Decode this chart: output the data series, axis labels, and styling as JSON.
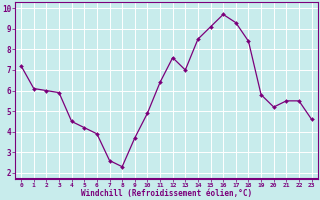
{
  "x": [
    0,
    1,
    2,
    3,
    4,
    5,
    6,
    7,
    8,
    9,
    10,
    11,
    12,
    13,
    14,
    15,
    16,
    17,
    18,
    19,
    20,
    21,
    22,
    23
  ],
  "y": [
    7.2,
    6.1,
    6.0,
    5.9,
    4.5,
    4.2,
    3.9,
    2.6,
    2.3,
    3.7,
    4.9,
    6.4,
    7.6,
    7.0,
    8.5,
    9.1,
    9.7,
    9.3,
    8.4,
    5.8,
    5.2,
    5.5,
    5.5,
    4.6
  ],
  "line_color": "#7b007b",
  "marker": "D",
  "marker_size": 2.0,
  "bg_color": "#c8ecec",
  "grid_color": "#aed4d4",
  "xlabel": "Windchill (Refroidissement éolien,°C)",
  "xlabel_color": "#7b007b",
  "tick_color": "#7b007b",
  "ylim": [
    1.7,
    10.3
  ],
  "xlim": [
    -0.5,
    23.5
  ],
  "yticks": [
    2,
    3,
    4,
    5,
    6,
    7,
    8,
    9,
    10
  ],
  "xticks": [
    0,
    1,
    2,
    3,
    4,
    5,
    6,
    7,
    8,
    9,
    10,
    11,
    12,
    13,
    14,
    15,
    16,
    17,
    18,
    19,
    20,
    21,
    22,
    23
  ],
  "xtick_labels": [
    "0",
    "1",
    "2",
    "3",
    "4",
    "5",
    "6",
    "7",
    "8",
    "9",
    "10",
    "11",
    "12",
    "13",
    "14",
    "15",
    "16",
    "17",
    "18",
    "19",
    "20",
    "21",
    "22",
    "23"
  ],
  "spine_color": "#7b007b",
  "bottom_bar_color": "#7b007b"
}
